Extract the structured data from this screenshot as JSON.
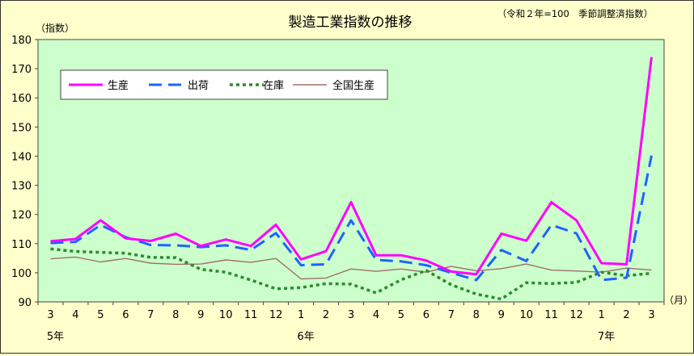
{
  "chart_data": {
    "type": "line",
    "title": "製造工業指数の推移",
    "note": "（令和２年=100　季節調整済指数）",
    "ylabel": "（指数）",
    "xunit": "（月）",
    "ylim": [
      90,
      180
    ],
    "yticks": [
      90,
      100,
      110,
      120,
      130,
      140,
      150,
      160,
      170,
      180
    ],
    "grid": false,
    "legend_position": "top-left",
    "categories": [
      "3",
      "4",
      "5",
      "6",
      "7",
      "8",
      "9",
      "10",
      "11",
      "12",
      "1",
      "2",
      "3",
      "4",
      "5",
      "6",
      "7",
      "8",
      "9",
      "10",
      "11",
      "12",
      "1",
      "2",
      "3"
    ],
    "year_labels": [
      {
        "index": 0,
        "label": "5年"
      },
      {
        "index": 10,
        "label": "6年"
      },
      {
        "index": 22,
        "label": "7年"
      }
    ],
    "series": [
      {
        "name": "生産",
        "color": "#ff00ff",
        "style": "solid-thick",
        "values": [
          110.8,
          111.6,
          118.0,
          111.8,
          110.9,
          113.4,
          109.2,
          111.4,
          109.2,
          116.5,
          104.6,
          107.4,
          124.2,
          106.0,
          106.0,
          104.2,
          100.4,
          99.5,
          113.4,
          111.0,
          124.2,
          118.0,
          103.3,
          102.9,
          174.0
        ]
      },
      {
        "name": "出荷",
        "color": "#1e64ff",
        "style": "dashed",
        "values": [
          110.2,
          110.6,
          116.4,
          112.2,
          109.5,
          109.4,
          108.8,
          109.4,
          107.8,
          113.6,
          102.6,
          102.9,
          118.0,
          104.4,
          103.9,
          102.6,
          100.0,
          97.5,
          107.8,
          104.0,
          116.4,
          113.5,
          97.5,
          98.3,
          140.2
        ]
      },
      {
        "name": "在庫",
        "color": "#2e8b2e",
        "style": "dotted-thick",
        "values": [
          108.2,
          107.3,
          107.0,
          106.7,
          105.3,
          105.2,
          101.2,
          100.2,
          97.5,
          94.5,
          94.9,
          96.3,
          96.1,
          93.1,
          97.6,
          100.8,
          95.9,
          92.7,
          91.0,
          96.6,
          96.3,
          96.7,
          100.2,
          99.0,
          99.8
        ]
      },
      {
        "name": "全国生産",
        "color": "#a0706a",
        "style": "thin",
        "values": [
          104.8,
          105.4,
          103.7,
          104.9,
          103.3,
          102.9,
          103.0,
          104.4,
          103.6,
          104.9,
          97.9,
          98.2,
          101.3,
          100.5,
          101.3,
          100.2,
          102.2,
          100.7,
          101.4,
          103.0,
          100.9,
          100.6,
          100.2,
          101.6,
          100.9
        ]
      }
    ]
  }
}
